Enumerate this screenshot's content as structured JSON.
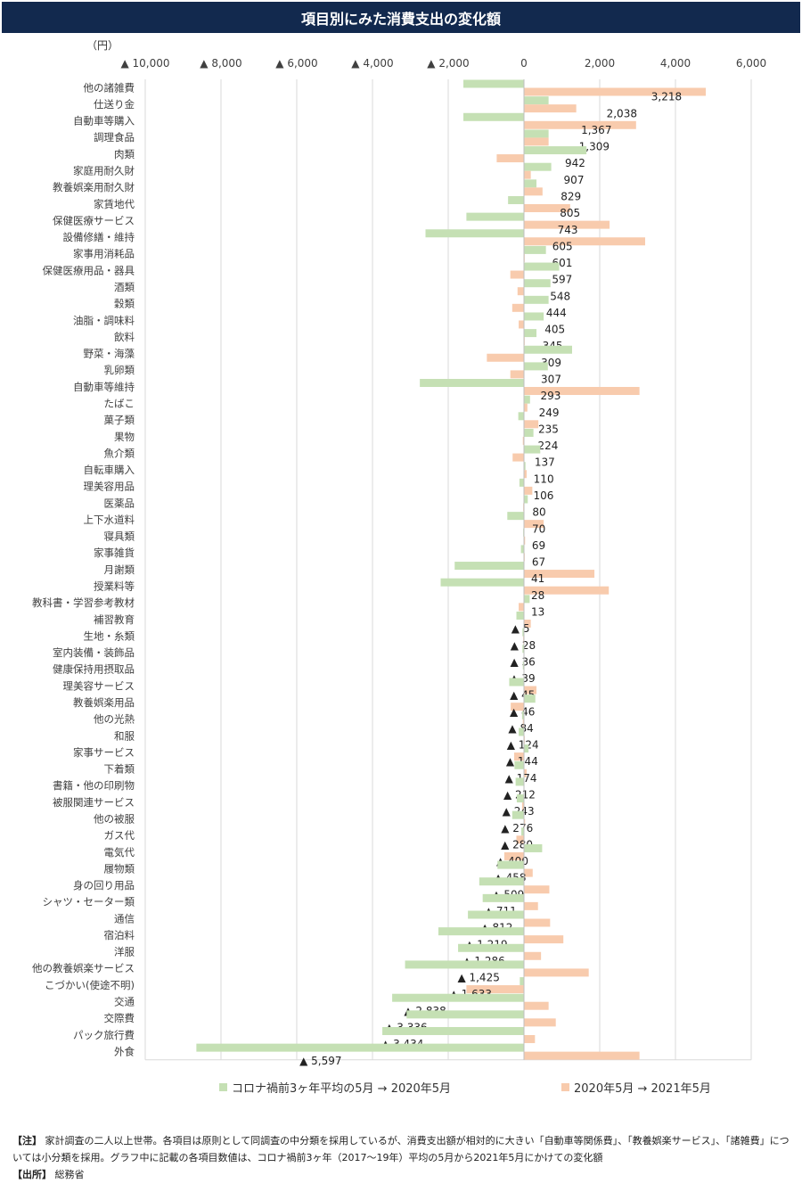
{
  "title": "項目別にみた消費支出の変化額",
  "unit": "（円）",
  "legend": {
    "series1": "コロナ禍前3ヶ年平均の5月 → 2020年5月",
    "series2": "2020年5月 → 2021年5月"
  },
  "notes": {
    "note_label": "【注】",
    "note_text": "家計調査の二人以上世帯。各項目は原則として同調査の中分類を採用しているが、消費支出額が相対的に大きい「自動車等関係費」、「教養娯楽サービス」、「諸雑費」については小分類を採用。グラフ中に記載の各項目数値は、コロナ禍前3ヶ年（2017～19年）平均の5月から2021年5月にかけての変化額",
    "source_label": "【出所】",
    "source_text": "総務省"
  },
  "chart_data": {
    "type": "bar",
    "orientation": "horizontal",
    "xlim": [
      -10000,
      6000
    ],
    "x_ticks": [
      -10000,
      -8000,
      -6000,
      -4000,
      -2000,
      0,
      2000,
      4000,
      6000
    ],
    "x_tick_labels": [
      "▲ 10,000",
      "▲ 8,000",
      "▲ 6,000",
      "▲ 4,000",
      "▲ 2,000",
      "0",
      "2,000",
      "4,000",
      "6,000"
    ],
    "grid": true,
    "legend_position": "bottom",
    "colors": {
      "series1": "#c5e0b4",
      "series2": "#f8cbad",
      "text": "#404040",
      "axis": "#d9d9d9"
    },
    "categories": [
      "他の諸雑費",
      "仕送り金",
      "自動車等購入",
      "調理食品",
      "肉類",
      "家庭用耐久財",
      "教養娯楽用耐久財",
      "家賃地代",
      "保健医療サービス",
      "設備修繕・維持",
      "家事用消耗品",
      "保健医療用品・器具",
      "酒類",
      "穀類",
      "油脂・調味料",
      "飲料",
      "野菜・海藻",
      "乳卵類",
      "自動車等維持",
      "たばこ",
      "菓子類",
      "果物",
      "魚介類",
      "自転車購入",
      "理美容用品",
      "医薬品",
      "上下水道料",
      "寝具類",
      "家事雑貨",
      "月謝類",
      "授業料等",
      "教科書・学習参考教材",
      "補習教育",
      "生地・糸類",
      "室内装備・装飾品",
      "健康保持用摂取品",
      "理美容サービス",
      "教養娯楽用品",
      "他の光熱",
      "和服",
      "家事サービス",
      "下着類",
      "書籍・他の印刷物",
      "被服関連サービス",
      "他の被服",
      "ガス代",
      "電気代",
      "履物類",
      "身の回り用品",
      "シャツ・セーター類",
      "通信",
      "宿泊料",
      "洋服",
      "他の教養娯楽サービス",
      "こづかい(使途不明)",
      "交通",
      "交際費",
      "パック旅行費",
      "外食"
    ],
    "series": [
      {
        "name": "コロナ禍前3ヶ年平均の5月 → 2020年5月",
        "values": [
          -1600,
          650,
          -1600,
          650,
          1650,
          720,
          330,
          -420,
          -1520,
          -2600,
          580,
          930,
          700,
          650,
          520,
          330,
          1270,
          630,
          -2750,
          160,
          -150,
          250,
          430,
          40,
          -120,
          100,
          -440,
          -20,
          -80,
          -1830,
          -2200,
          150,
          -200,
          -40,
          -40,
          -30,
          -390,
          300,
          -50,
          -140,
          120,
          -250,
          -220,
          -190,
          -310,
          -70,
          480,
          -700,
          -1180,
          -1090,
          -1480,
          -2260,
          -1740,
          -3140,
          -110,
          -3480,
          -3100,
          -3740,
          -8650
        ]
      },
      {
        "name": "2020年5月 → 2021年5月",
        "values": [
          4800,
          1380,
          2960,
          650,
          -720,
          180,
          490,
          1220,
          2260,
          3200,
          20,
          -360,
          -170,
          -310,
          -140,
          20,
          -980,
          -360,
          3050,
          90,
          380,
          -30,
          -300,
          70,
          220,
          -20,
          520,
          30,
          20,
          1860,
          2240,
          -140,
          180,
          -20,
          -10,
          -10,
          330,
          -350,
          -30,
          20,
          -260,
          70,
          10,
          -50,
          30,
          -200,
          -520,
          230,
          670,
          370,
          690,
          1040,
          450,
          1710,
          -1520,
          650,
          840,
          290,
          3050
        ]
      }
    ],
    "data_labels": [
      "3,218",
      "2,038",
      "1,367",
      "1,309",
      "942",
      "907",
      "829",
      "805",
      "743",
      "605",
      "601",
      "597",
      "548",
      "444",
      "405",
      "345",
      "309",
      "307",
      "293",
      "249",
      "235",
      "224",
      "137",
      "110",
      "106",
      "80",
      "70",
      "69",
      "67",
      "41",
      "28",
      "13",
      "▲ 5",
      "▲ 28",
      "▲ 36",
      "▲ 39",
      "▲ 45",
      "▲ 46",
      "▲ 84",
      "▲ 124",
      "▲ 144",
      "▲ 174",
      "▲ 212",
      "▲ 243",
      "▲ 276",
      "▲ 280",
      "▲ 400",
      "▲ 458",
      "▲ 509",
      "▲ 711",
      "▲ 812",
      "▲ 1,219",
      "▲ 1,286",
      "▲ 1,425",
      "▲ 1,633",
      "▲ 2,838",
      "▲ 3,336",
      "▲ 3,434",
      "▲ 5,597"
    ],
    "totals": [
      3218,
      2038,
      1367,
      1309,
      942,
      907,
      829,
      805,
      743,
      605,
      601,
      597,
      548,
      444,
      405,
      345,
      309,
      307,
      293,
      249,
      235,
      224,
      137,
      110,
      106,
      80,
      70,
      69,
      67,
      41,
      28,
      13,
      -5,
      -28,
      -36,
      -39,
      -45,
      -46,
      -84,
      -124,
      -144,
      -174,
      -212,
      -243,
      -276,
      -280,
      -400,
      -458,
      -509,
      -711,
      -812,
      -1219,
      -1286,
      -1425,
      -1633,
      -2838,
      -3336,
      -3434,
      -5597
    ]
  }
}
